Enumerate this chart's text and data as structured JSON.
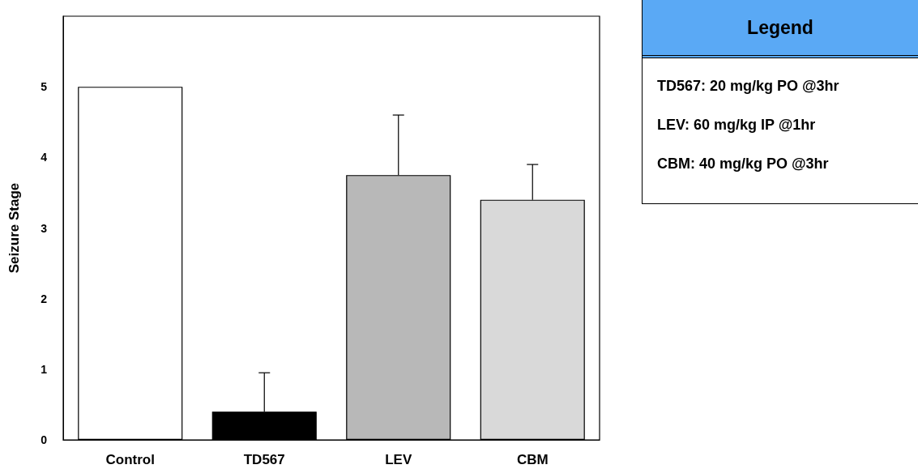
{
  "chart_data": [
    {
      "type": "bar",
      "ylabel": "Seizure Stage",
      "categories": [
        "Control",
        "TD567",
        "LEV",
        "CBM"
      ],
      "values": [
        5,
        0.4,
        3.75,
        3.4
      ],
      "colors": [
        "#ffffff",
        "#000000",
        "#b8b8b8",
        "#d9d9d9"
      ],
      "errors": [
        null,
        [
          0.4,
          0.95
        ],
        [
          3.75,
          4.6
        ],
        [
          3.4,
          3.9
        ]
      ],
      "ylim": [
        0,
        6
      ],
      "yticks": [
        0,
        1,
        2,
        3,
        4,
        5
      ]
    },
    {
      "type": "other",
      "title": "Legend",
      "annotations": [
        "TD567: 20 mg/kg PO @3hr",
        "LEV: 60 mg/kg IP @1hr",
        "CBM: 40 mg/kg PO @3hr"
      ]
    }
  ]
}
